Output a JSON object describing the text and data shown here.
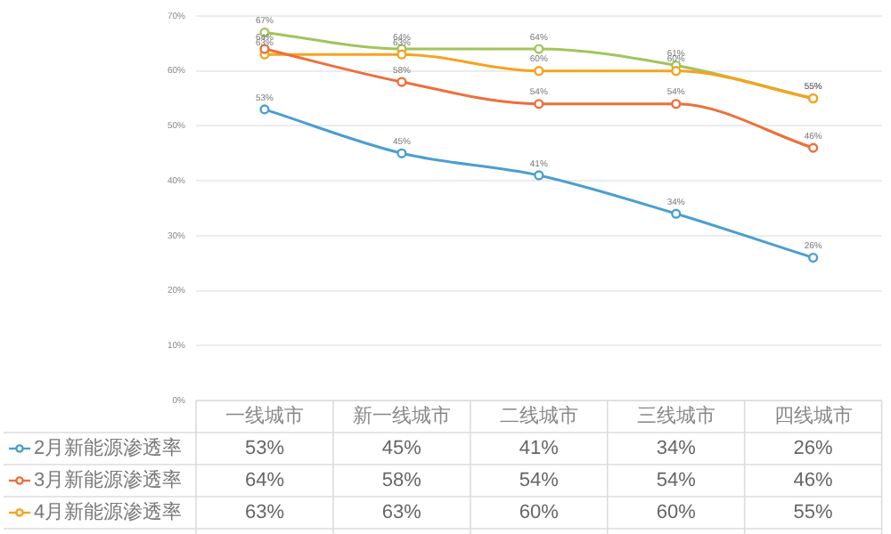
{
  "chart_data": {
    "type": "line",
    "categories": [
      "一线城市",
      "新一线城市",
      "二线城市",
      "三线城市",
      "四线城市"
    ],
    "series": [
      {
        "name": "2月新能源渗透率",
        "color": "#4a9fd0",
        "values": [
          53,
          45,
          41,
          34,
          26
        ],
        "value_labels": [
          "53%",
          "45%",
          "41%",
          "34%",
          "26%"
        ]
      },
      {
        "name": "3月新能源渗透率",
        "color": "#ee6f3a",
        "values": [
          64,
          58,
          54,
          54,
          46
        ],
        "value_labels": [
          "64%",
          "58%",
          "54%",
          "54%",
          "46%"
        ]
      },
      {
        "name": "4月新能源渗透率",
        "color": "#f5a31f",
        "values": [
          63,
          63,
          60,
          60,
          55
        ],
        "value_labels": [
          "63%",
          "63%",
          "60%",
          "60%",
          "55%"
        ]
      },
      {
        "color": "#a3c45a",
        "values": [
          67,
          64,
          64,
          61,
          55
        ],
        "value_labels": [
          "67%",
          "64%",
          "64%",
          "61%",
          "55%"
        ]
      }
    ],
    "ylim": [
      0,
      70
    ],
    "yticks": [
      {
        "value": 0,
        "label": "0%"
      },
      {
        "value": 10,
        "label": "10%"
      },
      {
        "value": 20,
        "label": "20%"
      },
      {
        "value": 30,
        "label": "30%"
      },
      {
        "value": 40,
        "label": "40%"
      },
      {
        "value": 50,
        "label": "50%"
      },
      {
        "value": 60,
        "label": "60%"
      },
      {
        "value": 70,
        "label": "70%"
      }
    ],
    "grid": "y",
    "legend": "bottom",
    "marker": "circle",
    "line_style": "solid"
  }
}
